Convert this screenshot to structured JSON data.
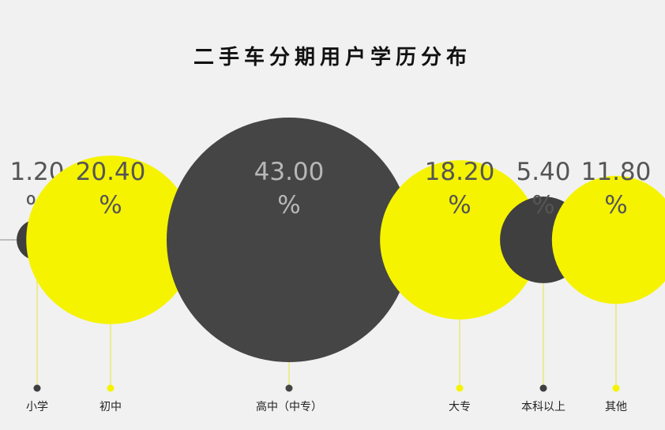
{
  "chart_data": {
    "type": "bubble",
    "title": "二手车分期用户学历分布",
    "unit": "%",
    "categories": [
      "小学",
      "初中",
      "高中（中专）",
      "大专",
      "本科以上",
      "其他"
    ],
    "values": [
      1.2,
      20.4,
      43.0,
      18.2,
      5.4,
      11.8
    ],
    "value_labels": [
      "1.20",
      "20.40",
      "43.00",
      "18.20",
      "5.40",
      "11.80"
    ],
    "colors": [
      "#3f3f3f",
      "#f5f300",
      "#454545",
      "#f5f300",
      "#3f3f3f",
      "#f5f300"
    ],
    "label_color": "#555555",
    "label_color_on_dark": "#b7b7b7",
    "baseline_color": "#8a8a8a",
    "connector_color": "#e8e23a"
  }
}
